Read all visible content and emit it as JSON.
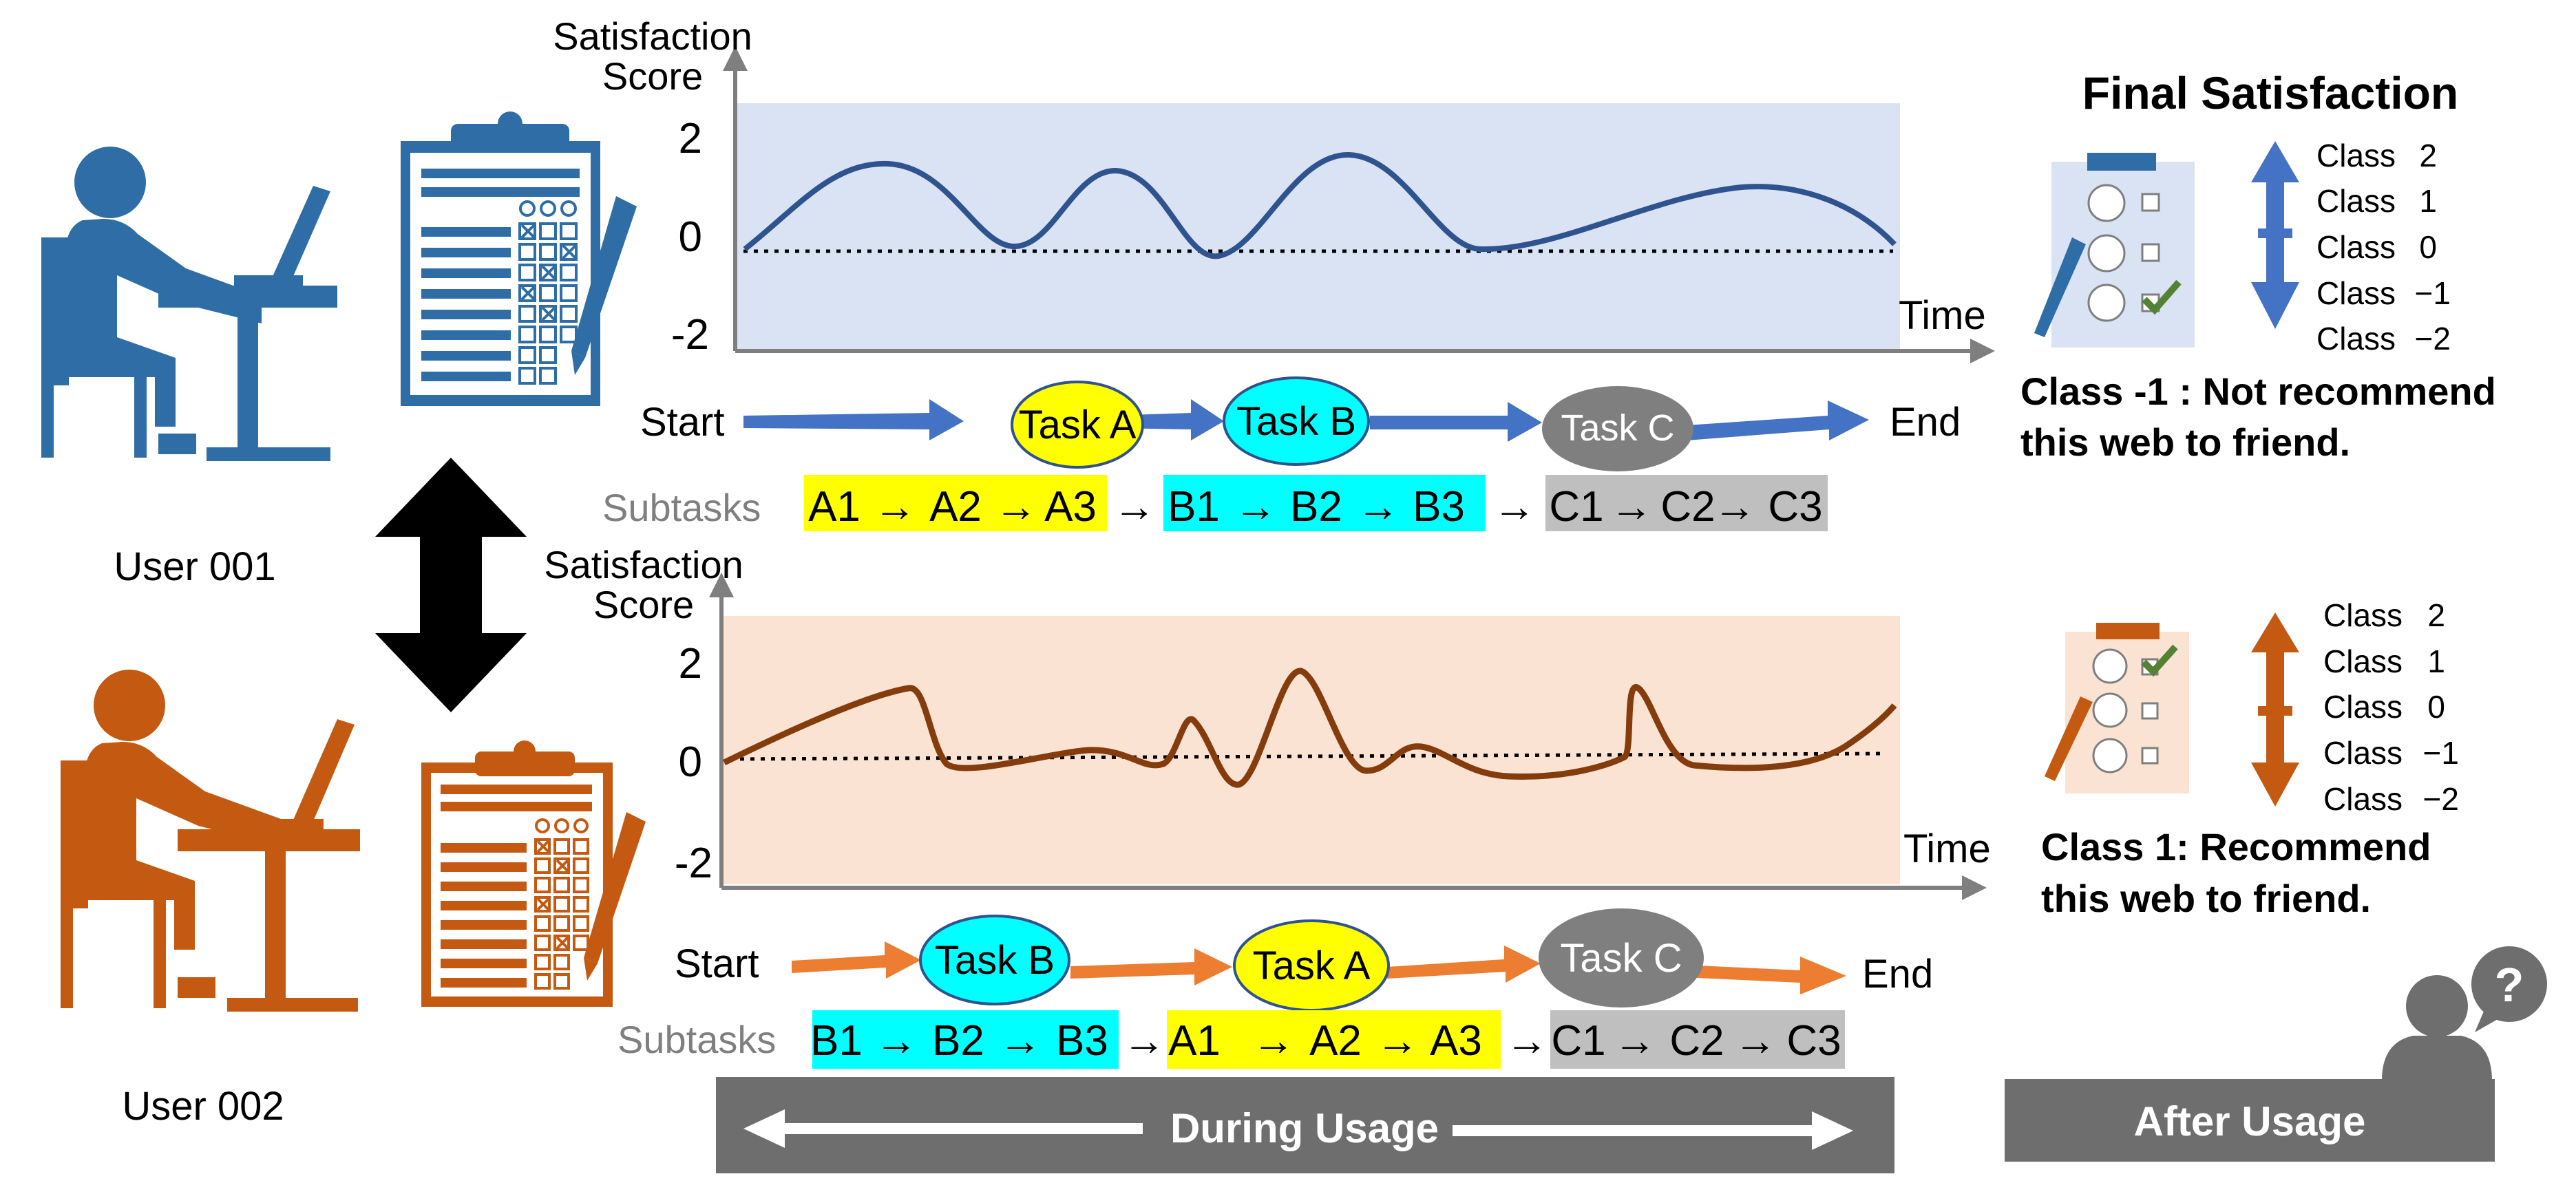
{
  "users": [
    {
      "label": "User 001",
      "color": "#2f6da6"
    },
    {
      "label": "User 002",
      "color": "#c45a11"
    }
  ],
  "chart1": {
    "ylabel_line1": "Satisfaction",
    "ylabel_line2": "Score",
    "xlabel": "Time",
    "ticks": [
      "2",
      "0",
      "-2"
    ],
    "bg": "#d9e3f4",
    "line_color": "#2f538e"
  },
  "chart2": {
    "ylabel_line1": "Satisfaction",
    "ylabel_line2": "Score",
    "xlabel": "Time",
    "ticks": [
      "2",
      "0",
      "-2"
    ],
    "bg": "#fbe3d4",
    "line_color": "#843c0c"
  },
  "flow1": {
    "start": "Start",
    "end": "End",
    "tasks": [
      "Task A",
      "Task B",
      "Task C"
    ],
    "arrow_color": "#4472c4",
    "subtasks_label": "Subtasks",
    "groups": [
      {
        "items": [
          "A1",
          "A2",
          "A3"
        ],
        "color": "#ffff00"
      },
      {
        "items": [
          "B1",
          "B2",
          "B3"
        ],
        "color": "#00ffff"
      },
      {
        "items": [
          "C1",
          "C2",
          "C3"
        ],
        "color": "#bfbfbf"
      }
    ]
  },
  "flow2": {
    "start": "Start",
    "end": "End",
    "tasks": [
      "Task B",
      "Task A",
      "Task C"
    ],
    "arrow_color": "#ed7d31",
    "subtasks_label": "Subtasks",
    "groups": [
      {
        "items": [
          "B1",
          "B2",
          "B3"
        ],
        "color": "#00ffff"
      },
      {
        "items": [
          "A1",
          "A2",
          "A3"
        ],
        "color": "#ffff00"
      },
      {
        "items": [
          "C1",
          "C2",
          "C3"
        ],
        "color": "#bfbfbf"
      }
    ]
  },
  "final": {
    "title": "Final Satisfaction",
    "classes1": [
      {
        "name": "Class",
        "value": "2"
      },
      {
        "name": "Class",
        "value": "1"
      },
      {
        "name": "Class",
        "value": "0"
      },
      {
        "name": "Class",
        "value": "−1"
      },
      {
        "name": "Class",
        "value": "−2"
      }
    ],
    "classes2": [
      {
        "name": "Class",
        "value": "2"
      },
      {
        "name": "Class",
        "value": "1"
      },
      {
        "name": "Class",
        "value": "0"
      },
      {
        "name": "Class",
        "value": "−1"
      },
      {
        "name": "Class",
        "value": "−2"
      }
    ],
    "note1_line1": "Class -1 : Not recommend",
    "note1_line2": "this web to friend.",
    "note2_line1": "Class 1: Recommend",
    "note2_line2": "this web to friend."
  },
  "bars": {
    "during": "During Usage",
    "after": "After Usage",
    "question": "?"
  }
}
